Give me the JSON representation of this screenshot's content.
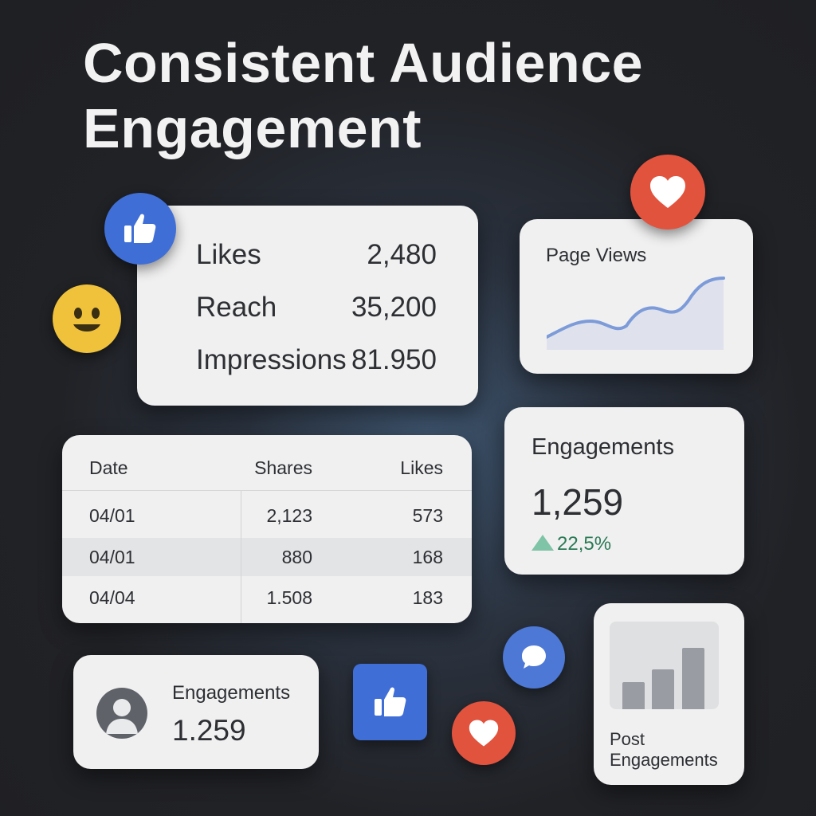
{
  "title": "Consistent Audience Engagement",
  "metrics": [
    {
      "label": "Likes",
      "value": "2,480"
    },
    {
      "label": "Reach",
      "value": "35,200"
    },
    {
      "label": "Impressions",
      "value": "81.950"
    }
  ],
  "page_views": {
    "caption": "Page Views"
  },
  "engagements_card": {
    "caption": "Engagements",
    "value": "1,259",
    "change": "22,5%"
  },
  "table": {
    "headers": [
      "Date",
      "Shares",
      "Likes"
    ],
    "rows": [
      [
        "04/01",
        "2,123",
        "573"
      ],
      [
        "04/01",
        "880",
        "168"
      ],
      [
        "04/04",
        "1.508",
        "183"
      ]
    ]
  },
  "profile_card": {
    "caption": "Engagements",
    "value": "1.259"
  },
  "post_card": {
    "caption_line1": "Post",
    "caption_line2": "Engagements"
  },
  "icons": {
    "thumbs_up_top": "thumbs-up-icon",
    "smiley": "smiley-icon",
    "heart_top": "heart-icon",
    "comment": "comment-icon",
    "thumbs_up_square": "thumbs-up-icon",
    "heart_bottom": "heart-icon",
    "avatar": "user-avatar-icon"
  },
  "colors": {
    "background": "#1e1f22",
    "card": "#f0f0f1",
    "facebook_blue": "#3f6fd6",
    "heart_red": "#e2533e",
    "smiley_yellow": "#f0c23b",
    "positive_green": "#2a7a55"
  }
}
